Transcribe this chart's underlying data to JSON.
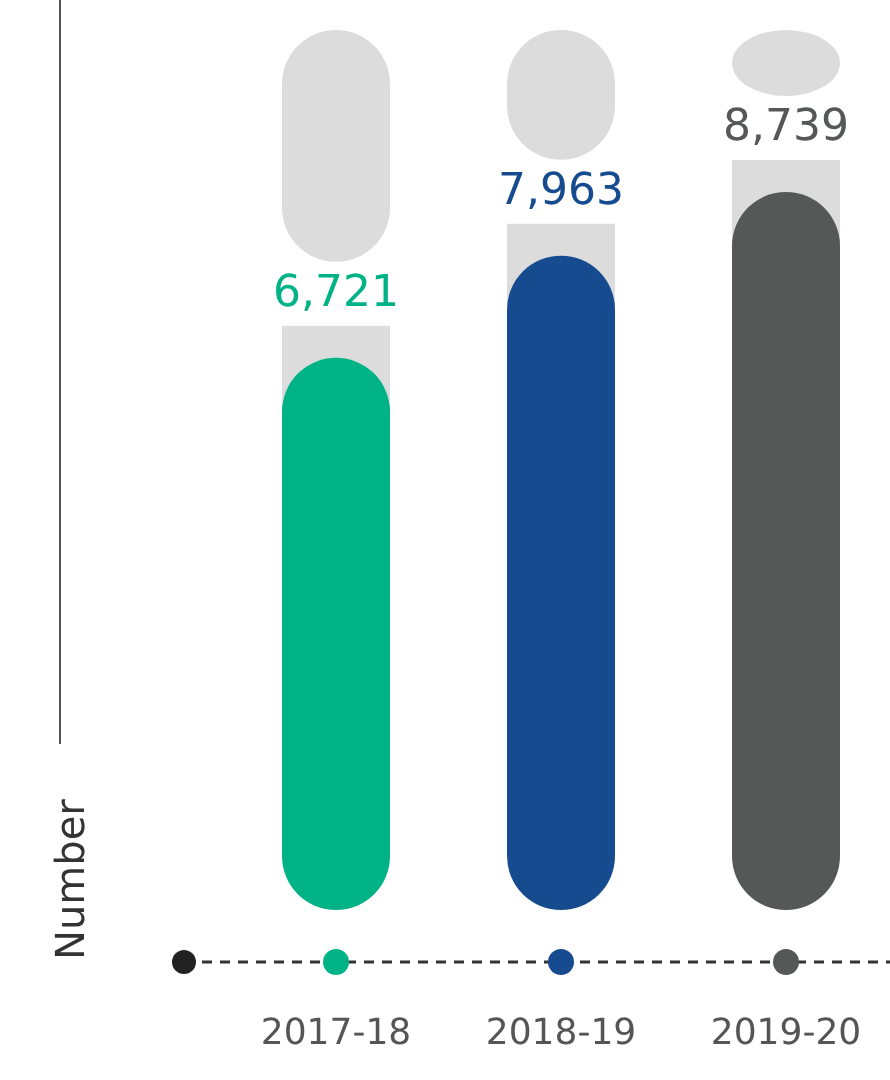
{
  "chart_data": {
    "type": "bar",
    "ylabel": "Number",
    "categories": [
      "2017-18",
      "2018-19",
      "2019-20"
    ],
    "values": [
      6721,
      7963,
      8739
    ],
    "colors": [
      "#00b386",
      "#174b8f",
      "#555857"
    ],
    "data_labels": true,
    "value_labels": [
      "6,721",
      "7,963",
      "8,739"
    ]
  }
}
